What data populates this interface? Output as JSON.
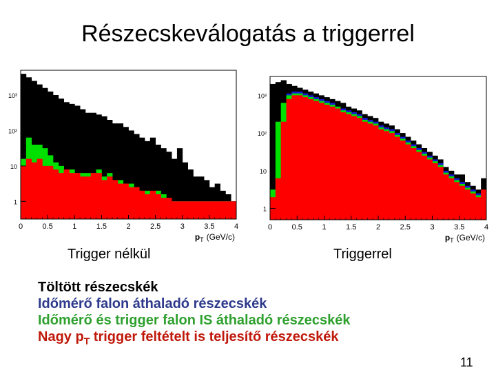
{
  "title": "Részecskeválogatás a triggerrel",
  "captions": {
    "left": "Trigger nélkül",
    "right": "Triggerrel"
  },
  "legend": {
    "line1": "Töltött részecskék",
    "line2": "Időmérő falon áthaladó részecskék",
    "line3": "Időmérő és trigger falon IS áthaladó részecskék",
    "line4_pre": "Nagy p",
    "line4_sub": "T",
    "line4_post": " trigger feltételt is teljesítő részecskék"
  },
  "page_number": "11",
  "colors": {
    "black": "#000000",
    "blue": "#1a1ad6",
    "green": "#00e000",
    "red": "#ff0000"
  },
  "chart_data": [
    {
      "type": "area",
      "panel": "left",
      "xlabel_main": "p",
      "xlabel_sub": "T",
      "xlabel_unit": "(GeV/c)",
      "x_ticks": [
        "0",
        "0.5",
        "1",
        "1.5",
        "2",
        "2.5",
        "3",
        "3.5",
        "4"
      ],
      "y_ticks": [
        "1",
        "10",
        "10²",
        "10³"
      ],
      "log_y": true,
      "xlim": [
        0,
        4
      ],
      "ylim_log10": [
        -0.5,
        3.7
      ],
      "x": [
        0.1,
        0.2,
        0.3,
        0.4,
        0.5,
        0.6,
        0.7,
        0.8,
        0.9,
        1.0,
        1.1,
        1.2,
        1.3,
        1.4,
        1.5,
        1.6,
        1.7,
        1.8,
        1.9,
        2.0,
        2.1,
        2.2,
        2.3,
        2.4,
        2.5,
        2.6,
        2.7,
        2.8,
        2.9,
        3.0,
        3.1,
        3.2,
        3.3,
        3.4,
        3.5,
        3.6,
        3.7,
        3.8,
        3.9,
        4.0
      ],
      "series": [
        {
          "name": "Töltött részecskék",
          "color": "black",
          "log10_values": [
            3.6,
            3.5,
            3.4,
            3.3,
            3.2,
            3.1,
            3.0,
            2.9,
            2.8,
            2.75,
            2.7,
            2.6,
            2.5,
            2.5,
            2.45,
            2.4,
            2.3,
            2.2,
            2.2,
            2.1,
            2.0,
            1.9,
            1.8,
            1.7,
            1.8,
            1.6,
            1.5,
            1.4,
            1.2,
            1.5,
            1.1,
            0.9,
            0.7,
            0.7,
            0.6,
            0.4,
            0.5,
            0.3,
            0.2,
            0.0
          ]
        },
        {
          "name": "Időmérő falon áthaladó részecskék",
          "color": "blue",
          "log10_values": [
            0.6,
            0.4,
            0.3,
            0.2,
            0.2,
            0.1,
            0.0,
            0.0,
            0.0,
            0.0,
            0.0,
            0.0,
            0.0,
            0.0,
            0.0,
            0.0,
            0.0,
            0.0,
            0.0,
            0.0,
            0.0,
            0.0,
            0.0,
            0.0,
            0.0,
            0.0,
            0.0,
            0.0,
            0.0,
            0.0,
            0.0,
            0.0,
            0.0,
            0.0,
            0.0,
            0.0,
            0.0,
            0.0,
            0.0,
            0.0
          ]
        },
        {
          "name": "Időmérő és trigger falon IS áthaladó részecskék",
          "color": "green",
          "log10_values": [
            1.2,
            1.8,
            1.6,
            1.6,
            1.5,
            1.3,
            1.1,
            1.0,
            0.9,
            0.9,
            0.8,
            0.8,
            0.8,
            0.8,
            0.9,
            0.7,
            0.8,
            0.6,
            0.6,
            0.5,
            0.5,
            0.4,
            0.3,
            0.3,
            0.2,
            0.3,
            0.2,
            0.1,
            0.0,
            0.0,
            0.0,
            0.0,
            0.0,
            0.0,
            0.0,
            0.0,
            0.0,
            0.0,
            0.0,
            0.0
          ]
        },
        {
          "name": "Nagy pT trigger feltételt is teljesítő részecskék",
          "color": "red",
          "log10_values": [
            1.0,
            1.2,
            1.1,
            1.2,
            1.0,
            1.0,
            0.9,
            0.8,
            0.9,
            0.8,
            0.8,
            0.7,
            0.7,
            0.8,
            0.8,
            0.6,
            0.7,
            0.6,
            0.5,
            0.5,
            0.4,
            0.4,
            0.3,
            0.2,
            0.3,
            0.2,
            0.1,
            0.1,
            0.0,
            0.0,
            0.0,
            0.0,
            0.0,
            0.0,
            0.0,
            0.0,
            0.0,
            0.0,
            0.0,
            0.0
          ]
        }
      ]
    },
    {
      "type": "area",
      "panel": "right",
      "xlabel_main": "p",
      "xlabel_sub": "T",
      "xlabel_unit": "(GeV/c)",
      "x_ticks": [
        "0",
        "0.5",
        "1",
        "1.5",
        "2",
        "2.5",
        "3",
        "3.5",
        "4"
      ],
      "y_ticks": [
        "1",
        "10",
        "10²",
        "10³"
      ],
      "log_y": true,
      "xlim": [
        0,
        4
      ],
      "ylim_log10": [
        -0.3,
        3.5
      ],
      "x": [
        0.1,
        0.2,
        0.3,
        0.4,
        0.5,
        0.6,
        0.7,
        0.8,
        0.9,
        1.0,
        1.1,
        1.2,
        1.3,
        1.4,
        1.5,
        1.6,
        1.7,
        1.8,
        1.9,
        2.0,
        2.1,
        2.2,
        2.3,
        2.4,
        2.5,
        2.6,
        2.7,
        2.8,
        2.9,
        3.0,
        3.1,
        3.2,
        3.3,
        3.4,
        3.5,
        3.6,
        3.7,
        3.8,
        3.9,
        4.0
      ],
      "series": [
        {
          "name": "Töltött részecskék",
          "color": "black",
          "log10_values": [
            3.3,
            3.35,
            3.4,
            3.3,
            3.25,
            3.2,
            3.15,
            3.1,
            3.05,
            3.0,
            2.95,
            2.9,
            2.85,
            2.8,
            2.7,
            2.65,
            2.6,
            2.5,
            2.45,
            2.4,
            2.3,
            2.25,
            2.2,
            2.1,
            2.0,
            1.9,
            1.8,
            1.7,
            1.6,
            1.5,
            1.4,
            1.3,
            1.1,
            1.0,
            0.9,
            0.9,
            0.7,
            0.6,
            0.5,
            0.8
          ]
        },
        {
          "name": "Időmérő falon áthaladó részecskék",
          "color": "blue",
          "log10_values": [
            0.0,
            0.0,
            0.0,
            3.05,
            3.1,
            3.1,
            3.05,
            3.0,
            2.95,
            2.9,
            2.85,
            2.8,
            2.7,
            2.65,
            2.6,
            2.55,
            2.5,
            2.4,
            2.35,
            2.3,
            2.2,
            2.15,
            2.1,
            2.0,
            1.9,
            1.8,
            1.7,
            1.6,
            1.5,
            1.4,
            1.3,
            1.2,
            1.0,
            0.9,
            0.8,
            0.7,
            0.6,
            0.5,
            0.4,
            0.0
          ]
        },
        {
          "name": "Időmérő és trigger falon IS áthaladó részecskék",
          "color": "green",
          "log10_values": [
            0.5,
            2.3,
            2.8,
            3.0,
            3.05,
            3.05,
            3.0,
            2.95,
            2.9,
            2.85,
            2.8,
            2.75,
            2.7,
            2.6,
            2.55,
            2.5,
            2.45,
            2.35,
            2.3,
            2.25,
            2.15,
            2.1,
            2.05,
            1.95,
            1.85,
            1.75,
            1.65,
            1.55,
            1.45,
            1.35,
            1.25,
            1.15,
            0.95,
            0.85,
            0.75,
            0.65,
            0.55,
            0.45,
            0.35,
            0.0
          ]
        },
        {
          "name": "Nagy pT trigger feltételt is teljesítő részecskék",
          "color": "red",
          "log10_values": [
            0.3,
            0.8,
            2.3,
            2.9,
            3.0,
            3.0,
            2.95,
            2.9,
            2.85,
            2.8,
            2.75,
            2.7,
            2.65,
            2.55,
            2.5,
            2.45,
            2.4,
            2.3,
            2.25,
            2.2,
            2.1,
            2.05,
            2.0,
            1.9,
            1.8,
            1.7,
            1.6,
            1.5,
            1.4,
            1.3,
            1.2,
            1.1,
            0.9,
            0.8,
            0.7,
            0.6,
            0.5,
            0.4,
            0.3,
            0.5
          ]
        }
      ]
    }
  ]
}
